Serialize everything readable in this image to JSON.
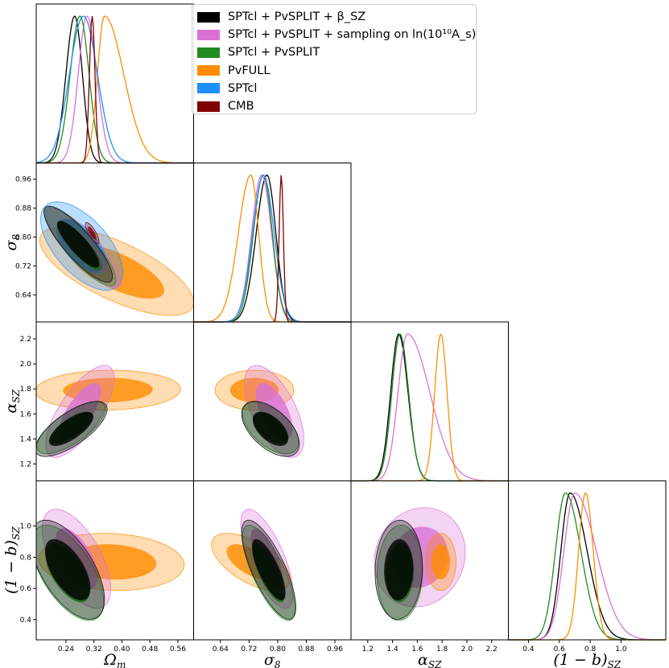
{
  "chart_data": {
    "type": "triangle",
    "title": "",
    "legend": {
      "placement": "top-right",
      "entries": [
        {
          "label": "SPTcl + PvSPLIT + β_SZ",
          "color": "#000000"
        },
        {
          "label": "SPTcl + PvSPLIT + sampling on ln(10¹⁰A_s)",
          "color": "#da70d6"
        },
        {
          "label": "SPTcl + PvSPLIT",
          "color": "#228b22"
        },
        {
          "label": "PvFULL",
          "color": "#ff8c00"
        },
        {
          "label": "SPTcl",
          "color": "#1e90ff"
        },
        {
          "label": "CMB",
          "color": "#800000"
        }
      ]
    },
    "parameters": [
      {
        "key": "om",
        "label": "Ω_m",
        "range": [
          0.155,
          0.605
        ],
        "ticks": [
          0.24,
          0.32,
          0.4,
          0.48,
          0.56
        ],
        "tick_labels": [
          "0.24",
          "0.32",
          "0.40",
          "0.48",
          "0.56"
        ]
      },
      {
        "key": "s8",
        "label": "σ_8",
        "range": [
          0.565,
          1.005
        ],
        "ticks": [
          0.64,
          0.72,
          0.8,
          0.88,
          0.96
        ],
        "tick_labels": [
          "0.64",
          "0.72",
          "0.80",
          "0.88",
          "0.96"
        ]
      },
      {
        "key": "asz",
        "label": "α_SZ",
        "range": [
          1.065,
          2.335
        ],
        "ticks": [
          1.2,
          1.4,
          1.6,
          1.8,
          2.0,
          2.2
        ],
        "tick_labels": [
          "1.2",
          "1.4",
          "1.6",
          "1.8",
          "2.0",
          "2.2"
        ]
      },
      {
        "key": "b",
        "label": "(1 − b)_SZ",
        "range": [
          0.27,
          1.29
        ],
        "ticks": [
          0.4,
          0.6,
          0.8,
          1.0
        ],
        "tick_labels": [
          "0.4",
          "0.6",
          "0.8",
          "1.0"
        ]
      }
    ],
    "axis_labels": {
      "om": {
        "main": "Ω",
        "sub": "m"
      },
      "s8": {
        "main": "σ",
        "sub": "8"
      },
      "asz": {
        "main": "α",
        "sub": "SZ"
      },
      "b": {
        "main": "(1 − b)",
        "sub": "SZ"
      }
    },
    "y_left_ticks": {
      "s8": [
        "0.64",
        "0.72",
        "0.80",
        "0.88",
        "0.96"
      ],
      "asz": [
        "1.2",
        "1.4",
        "1.6",
        "1.8",
        "2.0",
        "2.2"
      ],
      "b": [
        "0.4",
        "0.6",
        "0.8",
        "1.0"
      ]
    },
    "y_left_tick_values": {
      "s8": [
        0.64,
        0.72,
        0.8,
        0.88,
        0.96
      ],
      "asz": [
        1.2,
        1.4,
        1.6,
        1.8,
        2.0,
        2.2
      ],
      "b": [
        0.4,
        0.6,
        0.8,
        1.0
      ]
    },
    "marginals": {
      "om": [
        {
          "series": "SPTcl + PvSPLIT + β_SZ",
          "peak": 0.265,
          "sigma_left": 0.025,
          "sigma_right": 0.022
        },
        {
          "series": "SPTcl + PvSPLIT + sampling on ln(10¹⁰A_s)",
          "peak": 0.3,
          "sigma_left": 0.025,
          "sigma_right": 0.028
        },
        {
          "series": "SPTcl + PvSPLIT",
          "peak": 0.28,
          "sigma_left": 0.028,
          "sigma_right": 0.026
        },
        {
          "series": "PvFULL",
          "peak": 0.35,
          "sigma_left": 0.02,
          "sigma_right": 0.055
        },
        {
          "series": "SPTcl",
          "peak": 0.29,
          "sigma_left": 0.04,
          "sigma_right": 0.04
        },
        {
          "series": "CMB",
          "peak": 0.315,
          "sigma_left": 0.008,
          "sigma_right": 0.008
        }
      ],
      "s8": [
        {
          "series": "SPTcl + PvSPLIT + β_SZ",
          "peak": 0.77,
          "sigma_left": 0.03,
          "sigma_right": 0.025
        },
        {
          "series": "SPTcl + PvSPLIT + sampling on ln(10¹⁰A_s)",
          "peak": 0.755,
          "sigma_left": 0.028,
          "sigma_right": 0.028
        },
        {
          "series": "SPTcl + PvSPLIT",
          "peak": 0.76,
          "sigma_left": 0.028,
          "sigma_right": 0.025
        },
        {
          "series": "PvFULL",
          "peak": 0.725,
          "sigma_left": 0.035,
          "sigma_right": 0.022
        },
        {
          "series": "SPTcl",
          "peak": 0.76,
          "sigma_left": 0.03,
          "sigma_right": 0.03
        },
        {
          "series": "CMB",
          "peak": 0.81,
          "sigma_left": 0.006,
          "sigma_right": 0.006
        }
      ],
      "asz": [
        {
          "series": "SPTcl + PvSPLIT + β_SZ",
          "peak": 1.45,
          "sigma_left": 0.065,
          "sigma_right": 0.075
        },
        {
          "series": "SPTcl + PvSPLIT + sampling on ln(10¹⁰A_s)",
          "peak": 1.52,
          "sigma_left": 0.075,
          "sigma_right": 0.18
        },
        {
          "series": "SPTcl + PvSPLIT",
          "peak": 1.46,
          "sigma_left": 0.065,
          "sigma_right": 0.07
        },
        {
          "series": "PvFULL",
          "peak": 1.79,
          "sigma_left": 0.05,
          "sigma_right": 0.05
        }
      ],
      "b": [
        {
          "series": "SPTcl + PvSPLIT + β_SZ",
          "peak": 0.67,
          "sigma_left": 0.06,
          "sigma_right": 0.11
        },
        {
          "series": "SPTcl + PvSPLIT + sampling on ln(10¹⁰A_s)",
          "peak": 0.7,
          "sigma_left": 0.07,
          "sigma_right": 0.14
        },
        {
          "series": "SPTcl + PvSPLIT",
          "peak": 0.64,
          "sigma_left": 0.065,
          "sigma_right": 0.1
        },
        {
          "series": "PvFULL",
          "peak": 0.77,
          "sigma_left": 0.045,
          "sigma_right": 0.05
        }
      ]
    },
    "contours_2d": {
      "s8_vs_om": [
        {
          "series": "PvFULL",
          "center": [
            0.385,
            0.705
          ],
          "sd": [
            0.09,
            0.05
          ],
          "rho": -0.7
        },
        {
          "series": "SPTcl",
          "center": [
            0.285,
            0.775
          ],
          "sd": [
            0.048,
            0.05
          ],
          "rho": -0.6
        },
        {
          "series": "SPTcl + PvSPLIT + sampling on ln(10¹⁰A_s)",
          "center": [
            0.29,
            0.77
          ],
          "sd": [
            0.044,
            0.045
          ],
          "rho": -0.85
        },
        {
          "series": "SPTcl + PvSPLIT",
          "center": [
            0.28,
            0.775
          ],
          "sd": [
            0.042,
            0.045
          ],
          "rho": -0.85
        },
        {
          "series": "SPTcl + PvSPLIT + β_SZ",
          "center": [
            0.275,
            0.78
          ],
          "sd": [
            0.04,
            0.043
          ],
          "rho": -0.85
        },
        {
          "series": "CMB",
          "center": [
            0.315,
            0.811
          ],
          "sd": [
            0.008,
            0.012
          ],
          "rho": -0.8
        }
      ],
      "asz_vs_om": [
        {
          "series": "PvFULL",
          "center": [
            0.36,
            1.79
          ],
          "sd": [
            0.085,
            0.065
          ],
          "rho": 0.05
        },
        {
          "series": "SPTcl + PvSPLIT + sampling on ln(10¹⁰A_s)",
          "center": [
            0.28,
            1.62
          ],
          "sd": [
            0.04,
            0.15
          ],
          "rho": 0.72
        },
        {
          "series": "SPTcl + PvSPLIT",
          "center": [
            0.255,
            1.49
          ],
          "sd": [
            0.04,
            0.085
          ],
          "rho": 0.72
        },
        {
          "series": "SPTcl + PvSPLIT + β_SZ",
          "center": [
            0.255,
            1.48
          ],
          "sd": [
            0.042,
            0.09
          ],
          "rho": 0.72
        }
      ],
      "asz_vs_s8": [
        {
          "series": "PvFULL",
          "center": [
            0.735,
            1.79
          ],
          "sd": [
            0.045,
            0.065
          ],
          "rho": 0.0
        },
        {
          "series": "SPTcl + PvSPLIT + sampling on ln(10¹⁰A_s)",
          "center": [
            0.79,
            1.62
          ],
          "sd": [
            0.034,
            0.15
          ],
          "rho": -0.6
        },
        {
          "series": "SPTcl + PvSPLIT",
          "center": [
            0.78,
            1.49
          ],
          "sd": [
            0.032,
            0.085
          ],
          "rho": -0.55
        },
        {
          "series": "SPTcl + PvSPLIT + β_SZ",
          "center": [
            0.78,
            1.48
          ],
          "sd": [
            0.033,
            0.09
          ],
          "rho": -0.55
        }
      ],
      "b_vs_om": [
        {
          "series": "PvFULL",
          "center": [
            0.37,
            0.77
          ],
          "sd": [
            0.085,
            0.075
          ],
          "rho": -0.1
        },
        {
          "series": "SPTcl + PvSPLIT + sampling on ln(10¹⁰A_s)",
          "center": [
            0.27,
            0.79
          ],
          "sd": [
            0.04,
            0.13
          ],
          "rho": -0.6
        },
        {
          "series": "SPTcl + PvSPLIT",
          "center": [
            0.245,
            0.7
          ],
          "sd": [
            0.042,
            0.125
          ],
          "rho": -0.6
        },
        {
          "series": "SPTcl + PvSPLIT + β_SZ",
          "center": [
            0.245,
            0.72
          ],
          "sd": [
            0.043,
            0.13
          ],
          "rho": -0.6
        }
      ],
      "b_vs_s8": [
        {
          "series": "PvFULL",
          "center": [
            0.725,
            0.77
          ],
          "sd": [
            0.045,
            0.075
          ],
          "rho": -0.6
        },
        {
          "series": "SPTcl + PvSPLIT + sampling on ln(10¹⁰A_s)",
          "center": [
            0.77,
            0.79
          ],
          "sd": [
            0.03,
            0.13
          ],
          "rho": -0.7
        },
        {
          "series": "SPTcl + PvSPLIT",
          "center": [
            0.775,
            0.7
          ],
          "sd": [
            0.03,
            0.125
          ],
          "rho": -0.75
        },
        {
          "series": "SPTcl + PvSPLIT + β_SZ",
          "center": [
            0.775,
            0.72
          ],
          "sd": [
            0.031,
            0.13
          ],
          "rho": -0.75
        }
      ],
      "b_vs_asz": [
        {
          "series": "SPTcl + PvSPLIT + sampling on ln(10¹⁰A_s)",
          "center": [
            1.62,
            0.8
          ],
          "sd": [
            0.15,
            0.13
          ],
          "rho": 0.1
        },
        {
          "series": "SPTcl + PvSPLIT",
          "center": [
            1.46,
            0.7
          ],
          "sd": [
            0.075,
            0.125
          ],
          "rho": 0.05
        },
        {
          "series": "SPTcl + PvSPLIT + β_SZ",
          "center": [
            1.45,
            0.72
          ],
          "sd": [
            0.078,
            0.13
          ],
          "rho": 0.05
        },
        {
          "series": "PvFULL",
          "center": [
            1.79,
            0.77
          ],
          "sd": [
            0.05,
            0.075
          ],
          "rho": 0.0
        }
      ]
    },
    "contour_levels": [
      "68%",
      "95%"
    ]
  }
}
